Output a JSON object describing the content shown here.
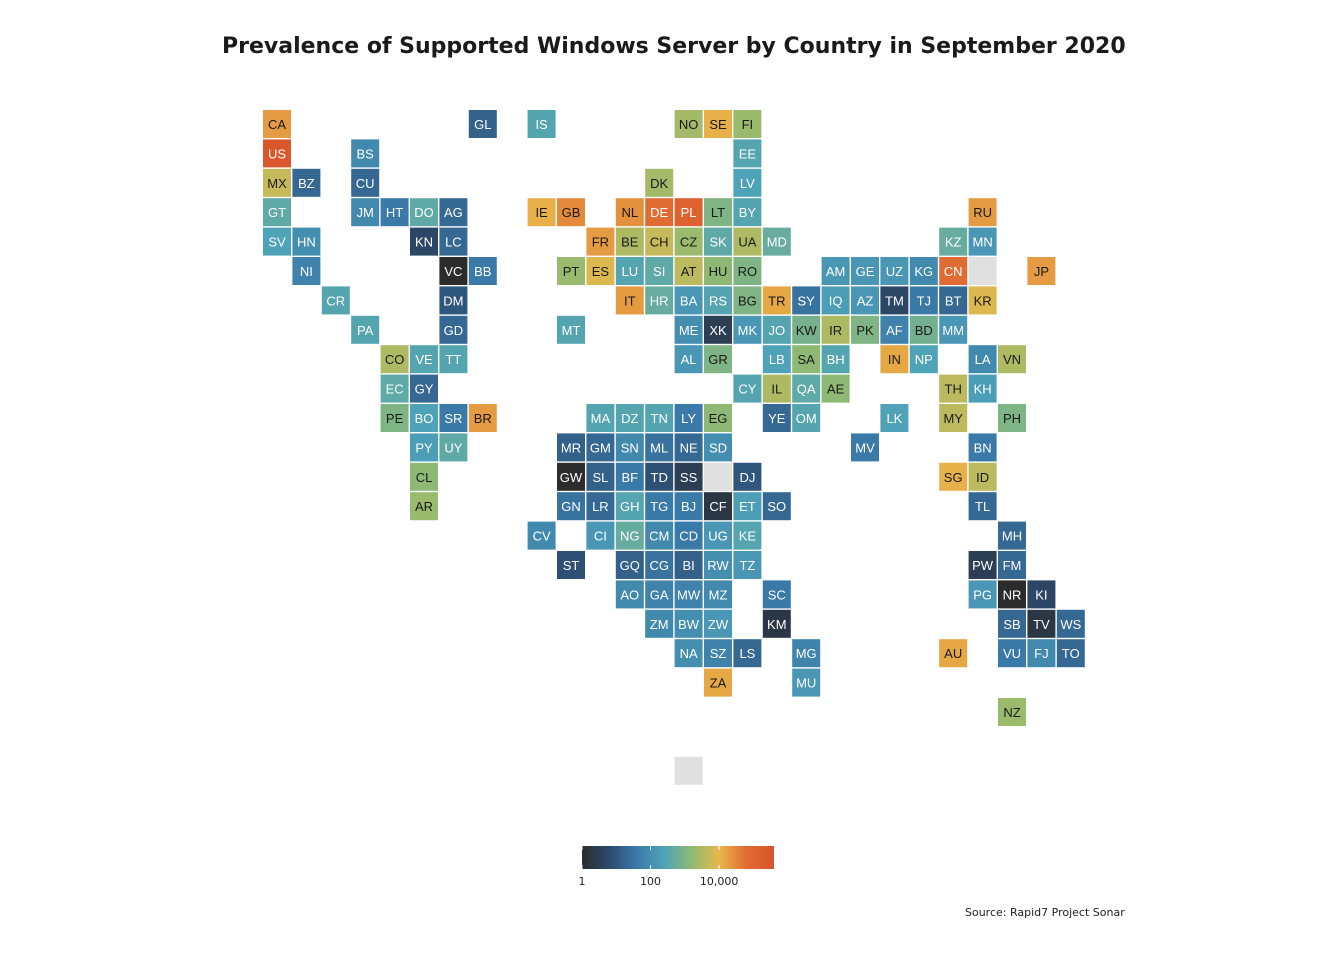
{
  "title": "Prevalence of Supported Windows Server by Country in September 2020",
  "source": "Source: Rapid7 Project Sonar",
  "colors": {
    "scale": [
      "#2c2c2c",
      "#2c4a6e",
      "#3a7aa8",
      "#4fa3b8",
      "#8fba72",
      "#e8b84a",
      "#e06a32",
      "#d9542a"
    ],
    "no_data": "#e0e0e0",
    "tile_border": "#ffffff"
  },
  "chart_data": {
    "type": "heatmap",
    "subtype": "tile-grid map",
    "value_scale": "log",
    "legend": {
      "position": "bottom-center",
      "ticks": [
        {
          "value": 1,
          "label": "1"
        },
        {
          "value": 100,
          "label": "100"
        },
        {
          "value": 10000,
          "label": "10,000"
        }
      ],
      "min": 1,
      "max": 400000
    },
    "tiles": [
      {
        "code": "CA",
        "col": 0,
        "row": 0,
        "value": 20000
      },
      {
        "code": "GL",
        "col": 7,
        "row": 0,
        "value": 15
      },
      {
        "code": "IS",
        "col": 9,
        "row": 0,
        "value": 300
      },
      {
        "code": "NO",
        "col": 14,
        "row": 0,
        "value": 2500
      },
      {
        "code": "SE",
        "col": 15,
        "row": 0,
        "value": 12000
      },
      {
        "code": "FI",
        "col": 16,
        "row": 0,
        "value": 2000
      },
      {
        "code": "US",
        "col": 0,
        "row": 1,
        "value": 300000
      },
      {
        "code": "BS",
        "col": 3,
        "row": 1,
        "value": 80
      },
      {
        "code": "EE",
        "col": 16,
        "row": 1,
        "value": 300
      },
      {
        "code": "MX",
        "col": 0,
        "row": 2,
        "value": 5000
      },
      {
        "code": "BZ",
        "col": 1,
        "row": 2,
        "value": 20
      },
      {
        "code": "CU",
        "col": 3,
        "row": 2,
        "value": 20
      },
      {
        "code": "DK",
        "col": 13,
        "row": 2,
        "value": 2500
      },
      {
        "code": "LV",
        "col": 16,
        "row": 2,
        "value": 250
      },
      {
        "code": "GT",
        "col": 0,
        "row": 3,
        "value": 400
      },
      {
        "code": "JM",
        "col": 3,
        "row": 3,
        "value": 80
      },
      {
        "code": "HT",
        "col": 4,
        "row": 3,
        "value": 40
      },
      {
        "code": "DO",
        "col": 5,
        "row": 3,
        "value": 400
      },
      {
        "code": "AG",
        "col": 6,
        "row": 3,
        "value": 20
      },
      {
        "code": "IE",
        "col": 9,
        "row": 3,
        "value": 12000
      },
      {
        "code": "GB",
        "col": 10,
        "row": 3,
        "value": 30000
      },
      {
        "code": "NL",
        "col": 12,
        "row": 3,
        "value": 25000
      },
      {
        "code": "DE",
        "col": 13,
        "row": 3,
        "value": 60000
      },
      {
        "code": "PL",
        "col": 14,
        "row": 3,
        "value": 120000
      },
      {
        "code": "LT",
        "col": 15,
        "row": 3,
        "value": 1000
      },
      {
        "code": "BY",
        "col": 16,
        "row": 3,
        "value": 300
      },
      {
        "code": "RU",
        "col": 24,
        "row": 3,
        "value": 20000
      },
      {
        "code": "SV",
        "col": 0,
        "row": 4,
        "value": 250
      },
      {
        "code": "HN",
        "col": 1,
        "row": 4,
        "value": 100
      },
      {
        "code": "KN",
        "col": 5,
        "row": 4,
        "value": 5
      },
      {
        "code": "LC",
        "col": 6,
        "row": 4,
        "value": 20
      },
      {
        "code": "FR",
        "col": 11,
        "row": 4,
        "value": 20000
      },
      {
        "code": "BE",
        "col": 12,
        "row": 4,
        "value": 3000
      },
      {
        "code": "CH",
        "col": 13,
        "row": 4,
        "value": 5000
      },
      {
        "code": "CZ",
        "col": 14,
        "row": 4,
        "value": 2000
      },
      {
        "code": "SK",
        "col": 15,
        "row": 4,
        "value": 400
      },
      {
        "code": "UA",
        "col": 16,
        "row": 4,
        "value": 3000
      },
      {
        "code": "MD",
        "col": 17,
        "row": 4,
        "value": 500
      },
      {
        "code": "KZ",
        "col": 23,
        "row": 4,
        "value": 500
      },
      {
        "code": "MN",
        "col": 24,
        "row": 4,
        "value": 150
      },
      {
        "code": "NI",
        "col": 1,
        "row": 5,
        "value": 60
      },
      {
        "code": "VC",
        "col": 6,
        "row": 5,
        "value": 1
      },
      {
        "code": "BB",
        "col": 7,
        "row": 5,
        "value": 40
      },
      {
        "code": "PT",
        "col": 10,
        "row": 5,
        "value": 2000
      },
      {
        "code": "ES",
        "col": 11,
        "row": 5,
        "value": 8000
      },
      {
        "code": "LU",
        "col": 12,
        "row": 5,
        "value": 300
      },
      {
        "code": "SI",
        "col": 13,
        "row": 5,
        "value": 400
      },
      {
        "code": "AT",
        "col": 14,
        "row": 5,
        "value": 4000
      },
      {
        "code": "HU",
        "col": 15,
        "row": 5,
        "value": 1500
      },
      {
        "code": "RO",
        "col": 16,
        "row": 5,
        "value": 1000
      },
      {
        "code": "AM",
        "col": 19,
        "row": 5,
        "value": 150
      },
      {
        "code": "GE",
        "col": 20,
        "row": 5,
        "value": 150
      },
      {
        "code": "UZ",
        "col": 21,
        "row": 5,
        "value": 150
      },
      {
        "code": "KG",
        "col": 22,
        "row": 5,
        "value": 80
      },
      {
        "code": "CN",
        "col": 23,
        "row": 5,
        "value": 60000
      },
      {
        "code": "JP",
        "col": 26,
        "row": 5,
        "value": 20000
      },
      {
        "code": "CR",
        "col": 2,
        "row": 6,
        "value": 300
      },
      {
        "code": "DM",
        "col": 6,
        "row": 6,
        "value": 10
      },
      {
        "code": "IT",
        "col": 12,
        "row": 6,
        "value": 20000
      },
      {
        "code": "HR",
        "col": 13,
        "row": 6,
        "value": 500
      },
      {
        "code": "BA",
        "col": 14,
        "row": 6,
        "value": 150
      },
      {
        "code": "RS",
        "col": 15,
        "row": 6,
        "value": 300
      },
      {
        "code": "BG",
        "col": 16,
        "row": 6,
        "value": 1000
      },
      {
        "code": "TR",
        "col": 17,
        "row": 6,
        "value": 15000
      },
      {
        "code": "SY",
        "col": 18,
        "row": 6,
        "value": 30
      },
      {
        "code": "IQ",
        "col": 19,
        "row": 6,
        "value": 200
      },
      {
        "code": "AZ",
        "col": 20,
        "row": 6,
        "value": 150
      },
      {
        "code": "TM",
        "col": 21,
        "row": 6,
        "value": 5
      },
      {
        "code": "TJ",
        "col": 22,
        "row": 6,
        "value": 40
      },
      {
        "code": "BT",
        "col": 23,
        "row": 6,
        "value": 20
      },
      {
        "code": "KR",
        "col": 24,
        "row": 6,
        "value": 8000
      },
      {
        "code": "PA",
        "col": 3,
        "row": 7,
        "value": 300
      },
      {
        "code": "GD",
        "col": 6,
        "row": 7,
        "value": 20
      },
      {
        "code": "MT",
        "col": 10,
        "row": 7,
        "value": 300
      },
      {
        "code": "ME",
        "col": 14,
        "row": 7,
        "value": 100
      },
      {
        "code": "XK",
        "col": 15,
        "row": 7,
        "value": 3
      },
      {
        "code": "MK",
        "col": 16,
        "row": 7,
        "value": 150
      },
      {
        "code": "JO",
        "col": 17,
        "row": 7,
        "value": 300
      },
      {
        "code": "KW",
        "col": 18,
        "row": 7,
        "value": 800
      },
      {
        "code": "IR",
        "col": 19,
        "row": 7,
        "value": 3000
      },
      {
        "code": "PK",
        "col": 20,
        "row": 7,
        "value": 1000
      },
      {
        "code": "AF",
        "col": 21,
        "row": 7,
        "value": 60
      },
      {
        "code": "BD",
        "col": 22,
        "row": 7,
        "value": 700
      },
      {
        "code": "MM",
        "col": 23,
        "row": 7,
        "value": 150
      },
      {
        "code": "CO",
        "col": 4,
        "row": 8,
        "value": 3000
      },
      {
        "code": "VE",
        "col": 5,
        "row": 8,
        "value": 300
      },
      {
        "code": "TT",
        "col": 6,
        "row": 8,
        "value": 300
      },
      {
        "code": "AL",
        "col": 14,
        "row": 8,
        "value": 150
      },
      {
        "code": "GR",
        "col": 15,
        "row": 8,
        "value": 1000
      },
      {
        "code": "LB",
        "col": 17,
        "row": 8,
        "value": 250
      },
      {
        "code": "SA",
        "col": 18,
        "row": 8,
        "value": 1500
      },
      {
        "code": "BH",
        "col": 19,
        "row": 8,
        "value": 300
      },
      {
        "code": "IN",
        "col": 21,
        "row": 8,
        "value": 15000
      },
      {
        "code": "NP",
        "col": 22,
        "row": 8,
        "value": 250
      },
      {
        "code": "LA",
        "col": 24,
        "row": 8,
        "value": 80
      },
      {
        "code": "VN",
        "col": 25,
        "row": 8,
        "value": 3000
      },
      {
        "code": "EC",
        "col": 4,
        "row": 9,
        "value": 400
      },
      {
        "code": "GY",
        "col": 5,
        "row": 9,
        "value": 20
      },
      {
        "code": "CY",
        "col": 16,
        "row": 9,
        "value": 300
      },
      {
        "code": "IL",
        "col": 17,
        "row": 9,
        "value": 3000
      },
      {
        "code": "QA",
        "col": 18,
        "row": 9,
        "value": 400
      },
      {
        "code": "AE",
        "col": 19,
        "row": 9,
        "value": 1500
      },
      {
        "code": "TH",
        "col": 23,
        "row": 9,
        "value": 4000
      },
      {
        "code": "KH",
        "col": 24,
        "row": 9,
        "value": 200
      },
      {
        "code": "PE",
        "col": 4,
        "row": 10,
        "value": 1000
      },
      {
        "code": "BO",
        "col": 5,
        "row": 10,
        "value": 250
      },
      {
        "code": "SR",
        "col": 6,
        "row": 10,
        "value": 40
      },
      {
        "code": "BR",
        "col": 7,
        "row": 10,
        "value": 20000
      },
      {
        "code": "MA",
        "col": 11,
        "row": 10,
        "value": 300
      },
      {
        "code": "DZ",
        "col": 12,
        "row": 10,
        "value": 300
      },
      {
        "code": "TN",
        "col": 13,
        "row": 10,
        "value": 300
      },
      {
        "code": "LY",
        "col": 14,
        "row": 10,
        "value": 40
      },
      {
        "code": "EG",
        "col": 15,
        "row": 10,
        "value": 1500
      },
      {
        "code": "YE",
        "col": 17,
        "row": 10,
        "value": 20
      },
      {
        "code": "OM",
        "col": 18,
        "row": 10,
        "value": 300
      },
      {
        "code": "LK",
        "col": 21,
        "row": 10,
        "value": 250
      },
      {
        "code": "MY",
        "col": 23,
        "row": 10,
        "value": 4000
      },
      {
        "code": "PH",
        "col": 25,
        "row": 10,
        "value": 1000
      },
      {
        "code": "PY",
        "col": 5,
        "row": 11,
        "value": 200
      },
      {
        "code": "UY",
        "col": 6,
        "row": 11,
        "value": 400
      },
      {
        "code": "MR",
        "col": 10,
        "row": 11,
        "value": 15
      },
      {
        "code": "GM",
        "col": 11,
        "row": 11,
        "value": 20
      },
      {
        "code": "SN",
        "col": 12,
        "row": 11,
        "value": 80
      },
      {
        "code": "ML",
        "col": 13,
        "row": 11,
        "value": 30
      },
      {
        "code": "NE",
        "col": 14,
        "row": 11,
        "value": 20
      },
      {
        "code": "SD",
        "col": 15,
        "row": 11,
        "value": 100
      },
      {
        "code": "MV",
        "col": 20,
        "row": 11,
        "value": 40
      },
      {
        "code": "BN",
        "col": 24,
        "row": 11,
        "value": 40
      },
      {
        "code": "CL",
        "col": 5,
        "row": 12,
        "value": 1500
      },
      {
        "code": "GW",
        "col": 10,
        "row": 12,
        "value": 1
      },
      {
        "code": "SL",
        "col": 11,
        "row": 12,
        "value": 15
      },
      {
        "code": "BF",
        "col": 12,
        "row": 12,
        "value": 40
      },
      {
        "code": "TD",
        "col": 13,
        "row": 12,
        "value": 8
      },
      {
        "code": "SS",
        "col": 14,
        "row": 12,
        "value": 3
      },
      {
        "code": "DJ",
        "col": 16,
        "row": 12,
        "value": 10
      },
      {
        "code": "SG",
        "col": 23,
        "row": 12,
        "value": 12000
      },
      {
        "code": "ID",
        "col": 24,
        "row": 12,
        "value": 4000
      },
      {
        "code": "AR",
        "col": 5,
        "row": 13,
        "value": 2000
      },
      {
        "code": "GN",
        "col": 10,
        "row": 13,
        "value": 30
      },
      {
        "code": "LR",
        "col": 11,
        "row": 13,
        "value": 20
      },
      {
        "code": "GH",
        "col": 12,
        "row": 13,
        "value": 300
      },
      {
        "code": "TG",
        "col": 13,
        "row": 13,
        "value": 40
      },
      {
        "code": "BJ",
        "col": 14,
        "row": 13,
        "value": 40
      },
      {
        "code": "CF",
        "col": 15,
        "row": 13,
        "value": 2
      },
      {
        "code": "ET",
        "col": 16,
        "row": 13,
        "value": 200
      },
      {
        "code": "SO",
        "col": 17,
        "row": 13,
        "value": 20
      },
      {
        "code": "TL",
        "col": 24,
        "row": 13,
        "value": 20
      },
      {
        "code": "CV",
        "col": 9,
        "row": 14,
        "value": 80
      },
      {
        "code": "CI",
        "col": 11,
        "row": 14,
        "value": 150
      },
      {
        "code": "NG",
        "col": 12,
        "row": 14,
        "value": 500
      },
      {
        "code": "CM",
        "col": 13,
        "row": 14,
        "value": 80
      },
      {
        "code": "CD",
        "col": 14,
        "row": 14,
        "value": 40
      },
      {
        "code": "UG",
        "col": 15,
        "row": 14,
        "value": 150
      },
      {
        "code": "KE",
        "col": 16,
        "row": 14,
        "value": 300
      },
      {
        "code": "MH",
        "col": 25,
        "row": 14,
        "value": 20
      },
      {
        "code": "ST",
        "col": 10,
        "row": 15,
        "value": 8
      },
      {
        "code": "GQ",
        "col": 12,
        "row": 15,
        "value": 15
      },
      {
        "code": "CG",
        "col": 13,
        "row": 15,
        "value": 30
      },
      {
        "code": "BI",
        "col": 14,
        "row": 15,
        "value": 15
      },
      {
        "code": "RW",
        "col": 15,
        "row": 15,
        "value": 100
      },
      {
        "code": "TZ",
        "col": 16,
        "row": 15,
        "value": 150
      },
      {
        "code": "PW",
        "col": 24,
        "row": 15,
        "value": 3
      },
      {
        "code": "FM",
        "col": 25,
        "row": 15,
        "value": 20
      },
      {
        "code": "AO",
        "col": 12,
        "row": 16,
        "value": 80
      },
      {
        "code": "GA",
        "col": 13,
        "row": 16,
        "value": 60
      },
      {
        "code": "MW",
        "col": 14,
        "row": 16,
        "value": 60
      },
      {
        "code": "MZ",
        "col": 15,
        "row": 16,
        "value": 80
      },
      {
        "code": "SC",
        "col": 17,
        "row": 16,
        "value": 40
      },
      {
        "code": "PG",
        "col": 24,
        "row": 16,
        "value": 150
      },
      {
        "code": "NR",
        "col": 25,
        "row": 16,
        "value": 1
      },
      {
        "code": "KI",
        "col": 26,
        "row": 16,
        "value": 5
      },
      {
        "code": "ZM",
        "col": 13,
        "row": 17,
        "value": 80
      },
      {
        "code": "BW",
        "col": 14,
        "row": 17,
        "value": 100
      },
      {
        "code": "ZW",
        "col": 15,
        "row": 17,
        "value": 150
      },
      {
        "code": "KM",
        "col": 17,
        "row": 17,
        "value": 2
      },
      {
        "code": "SB",
        "col": 25,
        "row": 17,
        "value": 20
      },
      {
        "code": "TV",
        "col": 26,
        "row": 17,
        "value": 2
      },
      {
        "code": "WS",
        "col": 27,
        "row": 17,
        "value": 20
      },
      {
        "code": "NA",
        "col": 14,
        "row": 18,
        "value": 100
      },
      {
        "code": "SZ",
        "col": 15,
        "row": 18,
        "value": 60
      },
      {
        "code": "LS",
        "col": 16,
        "row": 18,
        "value": 20
      },
      {
        "code": "MG",
        "col": 18,
        "row": 18,
        "value": 60
      },
      {
        "code": "AU",
        "col": 23,
        "row": 18,
        "value": 15000
      },
      {
        "code": "VU",
        "col": 25,
        "row": 18,
        "value": 40
      },
      {
        "code": "FJ",
        "col": 26,
        "row": 18,
        "value": 80
      },
      {
        "code": "TO",
        "col": 27,
        "row": 18,
        "value": 20
      },
      {
        "code": "ZA",
        "col": 15,
        "row": 19,
        "value": 15000
      },
      {
        "code": "MU",
        "col": 18,
        "row": 19,
        "value": 150
      },
      {
        "code": "NZ",
        "col": 25,
        "row": 20,
        "value": 2000
      },
      {
        "code": "",
        "col": 24,
        "row": 5,
        "value": null
      },
      {
        "code": "",
        "col": 15,
        "row": 12,
        "value": null
      },
      {
        "code": "",
        "col": 14,
        "row": 22,
        "value": null
      }
    ]
  }
}
